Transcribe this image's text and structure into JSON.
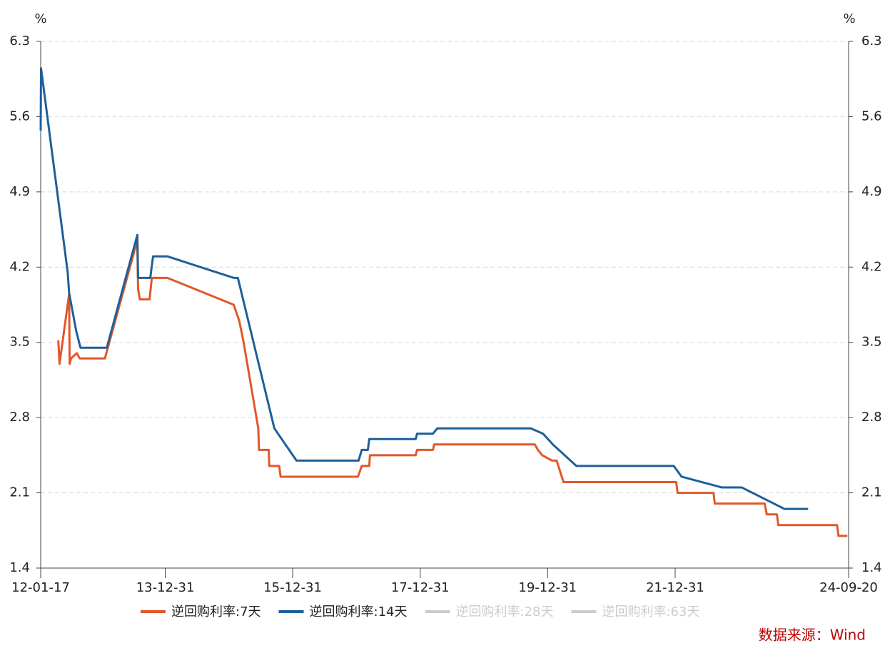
{
  "chart_data": {
    "type": "line",
    "y_unit": "%",
    "y2_unit": "%",
    "xlim": [
      "12-01-17",
      "24-09-20"
    ],
    "xticks": [
      "12-01-17",
      "13-12-31",
      "15-12-31",
      "17-12-31",
      "19-12-31",
      "21-12-31",
      "24-09-20"
    ],
    "ylim": [
      1.4,
      6.3
    ],
    "yticks": [
      1.4,
      2.1,
      2.8,
      3.5,
      4.2,
      4.9,
      5.6,
      6.3
    ],
    "y2lim": [
      1.4,
      6.3
    ],
    "y2ticks": [
      1.4,
      2.1,
      2.8,
      3.5,
      4.2,
      4.9,
      5.6,
      6.3
    ],
    "grid": true,
    "legend": "bottom",
    "source": "数据来源：Wind",
    "series": [
      {
        "name": "逆回购利率:7天",
        "color": "#e0582a",
        "x": [
          "12-04-27",
          "12-05-04",
          "12-06-28",
          "12-07-01",
          "12-07-09",
          "12-08-11",
          "12-08-28",
          "13-01-19",
          "13-07-24",
          "13-07-28",
          "13-08-07",
          "13-10-02",
          "13-10-15",
          "14-01-12",
          "15-01-27",
          "15-02-28",
          "15-03-25",
          "15-06-17",
          "15-06-21",
          "15-08-16",
          "15-08-19",
          "15-10-15",
          "15-10-23",
          "17-01-08",
          "17-01-30",
          "17-03-14",
          "17-03-18",
          "17-12-05",
          "17-12-13",
          "18-03-14",
          "18-03-21",
          "19-10-19",
          "19-11-05",
          "19-11-30",
          "20-01-26",
          "20-02-21",
          "20-03-31",
          "22-01-06",
          "22-01-14",
          "22-08-08",
          "22-08-15",
          "23-05-28",
          "23-06-09",
          "23-08-06",
          "23-08-14",
          "24-07-16",
          "24-07-24",
          "24-09-13"
        ],
        "values": [
          3.52,
          3.3,
          3.95,
          3.3,
          3.35,
          3.4,
          3.35,
          3.35,
          4.45,
          4.0,
          3.9,
          3.9,
          4.1,
          4.1,
          3.85,
          3.7,
          3.5,
          2.7,
          2.5,
          2.5,
          2.35,
          2.35,
          2.25,
          2.25,
          2.35,
          2.35,
          2.45,
          2.45,
          2.5,
          2.5,
          2.55,
          2.55,
          2.5,
          2.45,
          2.4,
          2.4,
          2.2,
          2.2,
          2.1,
          2.1,
          2.0,
          2.0,
          1.9,
          1.9,
          1.8,
          1.8,
          1.7,
          1.7
        ]
      },
      {
        "name": "逆回购利率:14天",
        "color": "#1f5f99",
        "x": [
          "12-01-17",
          "12-01-19",
          "12-06-20",
          "12-06-28",
          "12-08-07",
          "12-09-01",
          "13-01-30",
          "13-07-24",
          "13-07-28",
          "13-10-06",
          "13-10-22",
          "14-01-12",
          "15-01-27",
          "15-02-20",
          "15-09-17",
          "16-01-22",
          "17-01-12",
          "17-01-30",
          "17-03-06",
          "17-03-14",
          "17-12-05",
          "17-12-13",
          "18-03-14",
          "18-04-08",
          "19-09-26",
          "19-12-05",
          "20-01-30",
          "20-06-13",
          "21-12-23",
          "22-02-06",
          "22-09-25",
          "23-01-17",
          "23-09-19",
          "24-02-01"
        ],
        "values": [
          5.47,
          6.05,
          4.15,
          3.96,
          3.61,
          3.45,
          3.45,
          4.5,
          4.1,
          4.1,
          4.3,
          4.3,
          4.1,
          4.1,
          2.7,
          2.4,
          2.4,
          2.5,
          2.5,
          2.6,
          2.6,
          2.65,
          2.65,
          2.7,
          2.7,
          2.65,
          2.55,
          2.35,
          2.35,
          2.25,
          2.15,
          2.15,
          1.95,
          1.95
        ]
      },
      {
        "name": "逆回购利率:28天",
        "color": "#cccccc",
        "x": [],
        "values": []
      },
      {
        "name": "逆回购利率:63天",
        "color": "#cccccc",
        "x": [],
        "values": []
      }
    ]
  }
}
